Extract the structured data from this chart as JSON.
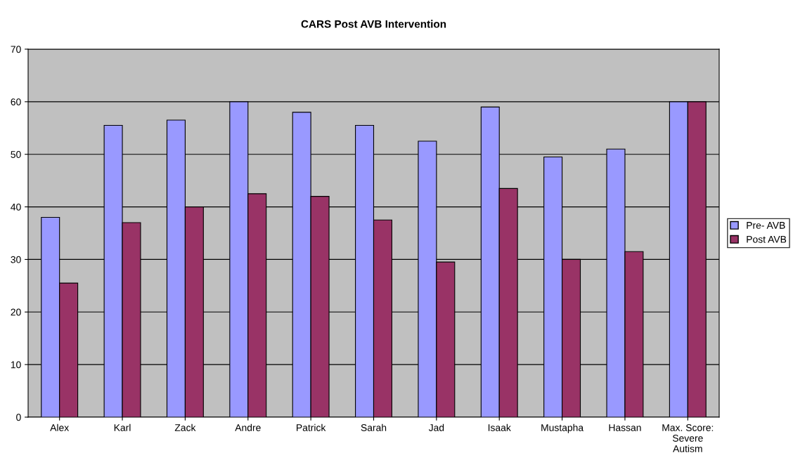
{
  "chart_data": {
    "type": "bar",
    "title": "CARS Post AVB Intervention",
    "categories": [
      "Alex",
      "Karl",
      "Zack",
      "Andre",
      "Patrick",
      "Sarah",
      "Jad",
      "Isaak",
      "Mustapha",
      "Hassan",
      "Max. Score:\nSevere\nAutism"
    ],
    "series": [
      {
        "name": "Pre- AVB",
        "color": "#9999ff",
        "values": [
          38,
          55.5,
          56.5,
          60,
          58,
          55.5,
          52.5,
          59,
          49.5,
          51,
          60
        ]
      },
      {
        "name": "Post AVB",
        "color": "#993366",
        "values": [
          25.5,
          37,
          40,
          42.5,
          42,
          37.5,
          29.5,
          43.5,
          30,
          31.5,
          60
        ]
      }
    ],
    "ylim": [
      0,
      70
    ],
    "yticks": [
      0,
      10,
      20,
      30,
      40,
      50,
      60,
      70
    ],
    "grid": "y",
    "legend": "right"
  }
}
